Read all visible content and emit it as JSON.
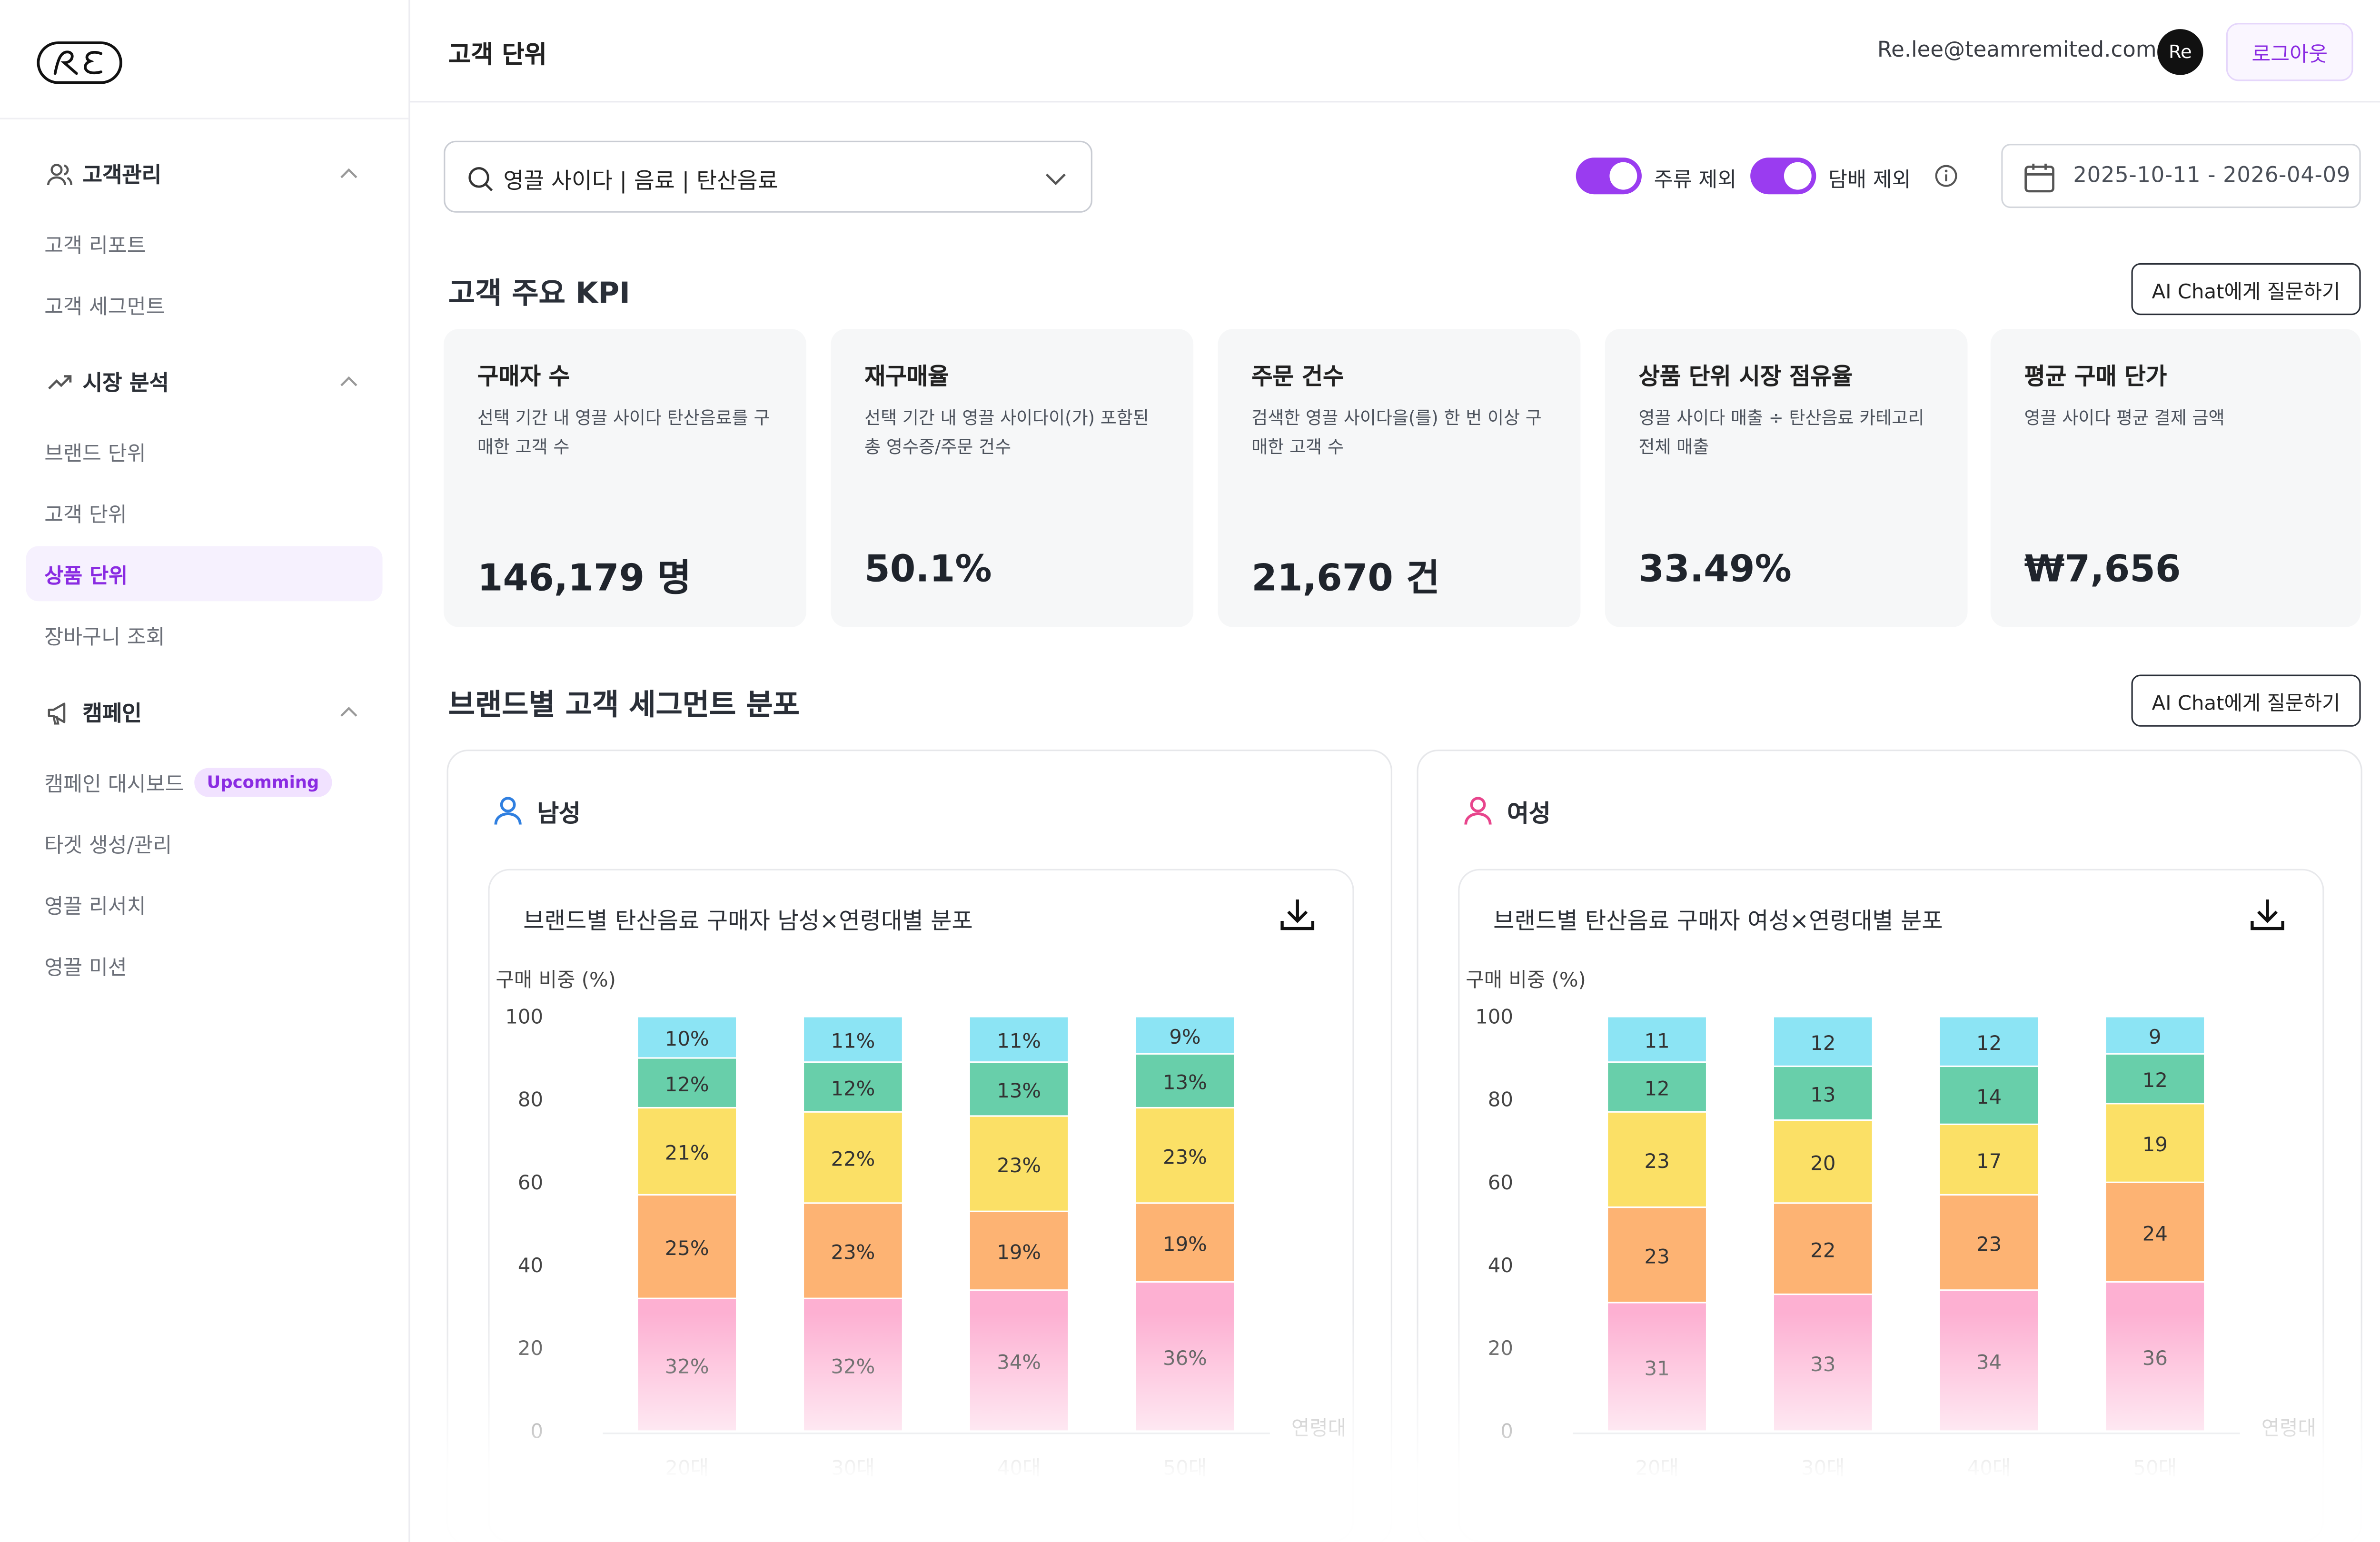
{
  "sidebar": {
    "groups": [
      {
        "label": "고객관리",
        "items": [
          "고객 리포트",
          "고객 세그먼트"
        ]
      },
      {
        "label": "시장 분석",
        "items": [
          "브랜드 단위",
          "고객 단위",
          "상품 단위",
          "장바구니 조회"
        ]
      },
      {
        "label": "캠페인",
        "items": [
          "캠페인 대시보드",
          "타겟 생성/관리",
          "영끌 리서치",
          "영끌 미션"
        ]
      }
    ],
    "active_item": "상품 단위",
    "badge": "Upcomming"
  },
  "header": {
    "title": "고객 단위",
    "email": "Re.lee@teamremited.com",
    "avatar": "Re",
    "logout": "로그아웃"
  },
  "filters": {
    "search_value": "영끌 사이다 | 음료 | 탄산음료",
    "toggle_alcohol": "주류 제외",
    "toggle_tobacco": "담배 제외",
    "date_range": "2025-10-11 - 2026-04-09"
  },
  "kpi_section": {
    "title": "고객 주요 KPI",
    "ai_button": "AI Chat에게 질문하기"
  },
  "kpis": [
    {
      "title": "구매자 수",
      "desc": "선택 기간 내 영끌 사이다 탄산음료를 구매한 고객 수",
      "value": "146,179 명"
    },
    {
      "title": "재구매율",
      "desc": "선택 기간 내 영끌 사이다이(가) 포함된 총 영수증/주문 건수",
      "value": "50.1%"
    },
    {
      "title": "주문 건수",
      "desc": "검색한 영끌 사이다을(를) 한 번 이상 구매한 고객 수",
      "value": "21,670 건"
    },
    {
      "title": "상품 단위 시장 점유율",
      "desc": "영끌 사이다 매출 ÷ 탄산음료 카테고리 전체 매출",
      "value": "33.49%"
    },
    {
      "title": "평균 구매 단가",
      "desc": "영끌 사이다 평균 결제 금액",
      "value": "₩7,656"
    }
  ],
  "segment_section": {
    "title": "브랜드별 고객 세그먼트 분포",
    "ai_button": "AI Chat에게 질문하기"
  },
  "panels": [
    {
      "gender": "남성",
      "chart_title": "브랜드별 탄산음료 구매자 남성×연령대별 분포"
    },
    {
      "gender": "여성",
      "chart_title": "브랜드별 탄산음료 구매자 여성×연령대별 분포"
    }
  ],
  "colors": {
    "accent": "#8a2be2",
    "male_icon": "#2f7fe0",
    "female_icon": "#e8458c"
  },
  "chart_data": [
    {
      "type": "bar",
      "stacked": true,
      "title": "브랜드별 탄산음료 구매자 남성×연령대별 분포",
      "ylabel": "구매 비중 (%)",
      "xlabel": "연령대",
      "ylim": [
        0,
        100
      ],
      "yticks": [
        0,
        20,
        40,
        60,
        80,
        100
      ],
      "categories": [
        "20대",
        "30대",
        "40대",
        "50대"
      ],
      "series": [
        {
          "color": "#fdb0d2",
          "values": [
            32,
            32,
            34,
            36
          ],
          "labels": [
            "32%",
            "32%",
            "34%",
            "36%"
          ]
        },
        {
          "color": "#fdb373",
          "values": [
            25,
            23,
            19,
            19
          ],
          "labels": [
            "25%",
            "23%",
            "19%",
            "19%"
          ]
        },
        {
          "color": "#fbe066",
          "values": [
            21,
            22,
            23,
            23
          ],
          "labels": [
            "21%",
            "22%",
            "23%",
            "23%"
          ]
        },
        {
          "color": "#68cfaa",
          "values": [
            12,
            12,
            13,
            13
          ],
          "labels": [
            "12%",
            "12%",
            "13%",
            "13%"
          ]
        },
        {
          "color": "#8ce4f4",
          "values": [
            10,
            11,
            11,
            9
          ],
          "labels": [
            "10%",
            "11%",
            "11%",
            "9%"
          ]
        }
      ]
    },
    {
      "type": "bar",
      "stacked": true,
      "title": "브랜드별 탄산음료 구매자 여성×연령대별 분포",
      "ylabel": "구매 비중 (%)",
      "xlabel": "연령대",
      "ylim": [
        0,
        100
      ],
      "yticks": [
        0,
        20,
        40,
        60,
        80,
        100
      ],
      "categories": [
        "20대",
        "30대",
        "40대",
        "50대"
      ],
      "series": [
        {
          "color": "#fdb0d2",
          "values": [
            31,
            33,
            34,
            36
          ],
          "labels": [
            "31",
            "33",
            "34",
            "36"
          ]
        },
        {
          "color": "#fdb373",
          "values": [
            23,
            22,
            23,
            24
          ],
          "labels": [
            "23",
            "22",
            "23",
            "24"
          ]
        },
        {
          "color": "#fbe066",
          "values": [
            23,
            20,
            17,
            19
          ],
          "labels": [
            "23",
            "20",
            "17",
            "19"
          ]
        },
        {
          "color": "#68cfaa",
          "values": [
            12,
            13,
            14,
            12
          ],
          "labels": [
            "12",
            "13",
            "14",
            "12"
          ]
        },
        {
          "color": "#8ce4f4",
          "values": [
            11,
            12,
            12,
            9
          ],
          "labels": [
            "11",
            "12",
            "12",
            "9"
          ]
        }
      ]
    }
  ]
}
